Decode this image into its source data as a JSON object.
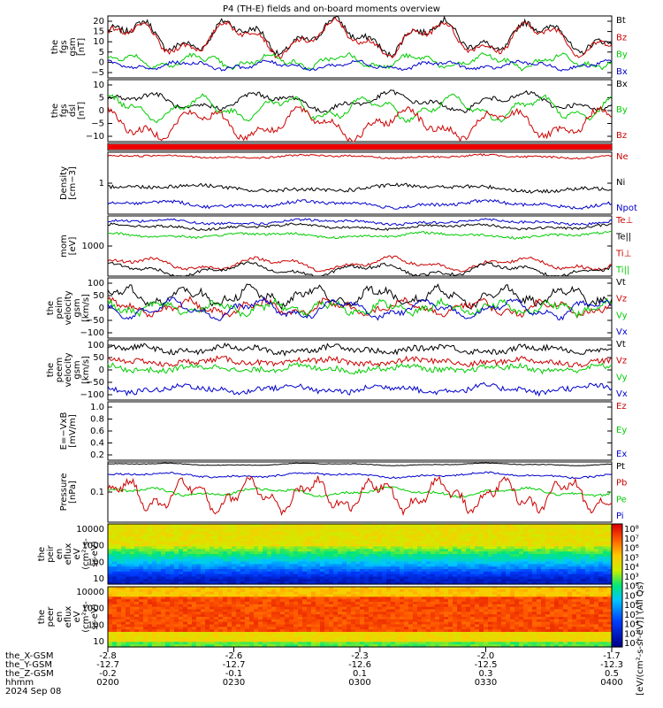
{
  "chart_data": {
    "type": "line",
    "title": "P4 (TH-E) fields and on-board moments overview",
    "x": {
      "ticks": [
        "0200",
        "0230",
        "0300",
        "0330",
        "0400"
      ],
      "orbit_rows": [
        {
          "label": "the_X-GSM",
          "values": [
            "-2.8",
            "-2.6",
            "-2.3",
            "-2.0",
            "-1.7"
          ]
        },
        {
          "label": "the_Y-GSM",
          "values": [
            "-12.7",
            "-12.7",
            "-12.6",
            "-12.5",
            "-12.3"
          ]
        },
        {
          "label": "the_Z-GSM",
          "values": [
            "-0.2",
            "-0.1",
            "0.1",
            "0.3",
            "0.5"
          ]
        },
        {
          "label": "hhmm",
          "values": [
            "0200",
            "0230",
            "0300",
            "0330",
            "0400"
          ]
        }
      ],
      "date": "2024 Sep 08"
    },
    "panels": [
      {
        "id": "fgs-gsm",
        "ylabel": [
          "the",
          "fgs",
          "gsm",
          "[nT]"
        ],
        "yticks": [
          "20",
          "15",
          "10",
          "5",
          "0",
          "−5"
        ],
        "legend": [
          {
            "t": "Bt",
            "c": "#000000"
          },
          {
            "t": "Bz",
            "c": "#cc0000"
          },
          {
            "t": "By",
            "c": "#00cc00"
          },
          {
            "t": "Bx",
            "c": "#0000cc"
          }
        ]
      },
      {
        "id": "fgs-dsl",
        "ylabel": [
          "the",
          "fgs",
          "dsl",
          "[nT]"
        ],
        "yticks": [
          "10",
          "5",
          "0",
          "−5",
          "−10"
        ],
        "legend": [
          {
            "t": "Bx",
            "c": "#000000"
          },
          {
            "t": "By",
            "c": "#00cc00"
          },
          {
            "t": "Bz",
            "c": "#cc0000"
          }
        ]
      },
      {
        "id": "quality",
        "ylabel": [],
        "yticks": [],
        "legend": []
      },
      {
        "id": "density",
        "ylabel": [
          "Density",
          "[cm−3]"
        ],
        "yticks": [
          "1"
        ],
        "legend": [
          {
            "t": "Ne",
            "c": "#cc0000"
          },
          {
            "t": "Ni",
            "c": "#000000"
          },
          {
            "t": "Npot",
            "c": "#0000cc"
          }
        ]
      },
      {
        "id": "temp",
        "ylabel": [
          "mom",
          "[eV]"
        ],
        "yticks": [
          "1000"
        ],
        "legend": [
          {
            "t": "Te⊥",
            "c": "#cc0000"
          },
          {
            "t": "Te||",
            "c": "#000000"
          },
          {
            "t": "Ti⊥",
            "c": "#cc0000"
          },
          {
            "t": "Ti||",
            "c": "#00cc00"
          }
        ]
      },
      {
        "id": "peim-vel",
        "ylabel": [
          "the",
          "peim",
          "velocity",
          "gsm",
          "[km/s]"
        ],
        "yticks": [
          "100",
          "50",
          "0",
          "−50",
          "−100"
        ],
        "legend": [
          {
            "t": "Vt",
            "c": "#000000"
          },
          {
            "t": "Vz",
            "c": "#cc0000"
          },
          {
            "t": "Vy",
            "c": "#00cc00"
          },
          {
            "t": "Vx",
            "c": "#0000cc"
          }
        ]
      },
      {
        "id": "peem-vel",
        "ylabel": [
          "the",
          "peem",
          "velocity",
          "gsm",
          "[km/s]"
        ],
        "yticks": [
          "100",
          "50",
          "0",
          "−50",
          "−100"
        ],
        "legend": [
          {
            "t": "Vt",
            "c": "#000000"
          },
          {
            "t": "Vz",
            "c": "#cc0000"
          },
          {
            "t": "Vy",
            "c": "#00cc00"
          },
          {
            "t": "Vx",
            "c": "#0000cc"
          }
        ]
      },
      {
        "id": "efield",
        "ylabel": [
          "E=−VxB",
          "[mV/m]"
        ],
        "yticks": [
          "1.0",
          "0.8",
          "0.6",
          "0.4",
          "0.2"
        ],
        "legend": [
          {
            "t": "Ez",
            "c": "#cc0000"
          },
          {
            "t": "Ey",
            "c": "#00cc00"
          },
          {
            "t": "Ex",
            "c": "#0000cc"
          }
        ]
      },
      {
        "id": "pressure",
        "ylabel": [
          "Pressure",
          "[nPa]"
        ],
        "yticks": [
          "0.1"
        ],
        "legend": [
          {
            "t": "Pt",
            "c": "#000000"
          },
          {
            "t": "Pb",
            "c": "#cc0000"
          },
          {
            "t": "Pe",
            "c": "#00cc00"
          },
          {
            "t": "Pi",
            "c": "#0000cc"
          }
        ]
      },
      {
        "id": "peir-spec",
        "ylabel": [
          "the",
          "peir",
          "en",
          "eflux",
          "eV",
          "(cm²-s-",
          "sr-eV)"
        ],
        "yticks": [
          "10000",
          "1000",
          "100",
          "10"
        ],
        "legend": []
      },
      {
        "id": "peer-spec",
        "ylabel": [
          "the",
          "peer",
          "en",
          "eflux",
          "eV",
          "(cm²-s-",
          "sr-eV)"
        ],
        "yticks": [
          "10000",
          "1000",
          "100",
          "10"
        ],
        "legend": []
      }
    ],
    "colorbar": {
      "ticks": [
        "10⁸",
        "10⁷",
        "10⁶",
        "10⁵",
        "10⁴",
        "10³",
        "10⁸",
        "10⁷",
        "10⁶",
        "10⁵",
        "10⁴",
        "10³",
        "10²"
      ],
      "label": "[eV/(cm²-s-sr-eV)] (All Qs)"
    }
  }
}
